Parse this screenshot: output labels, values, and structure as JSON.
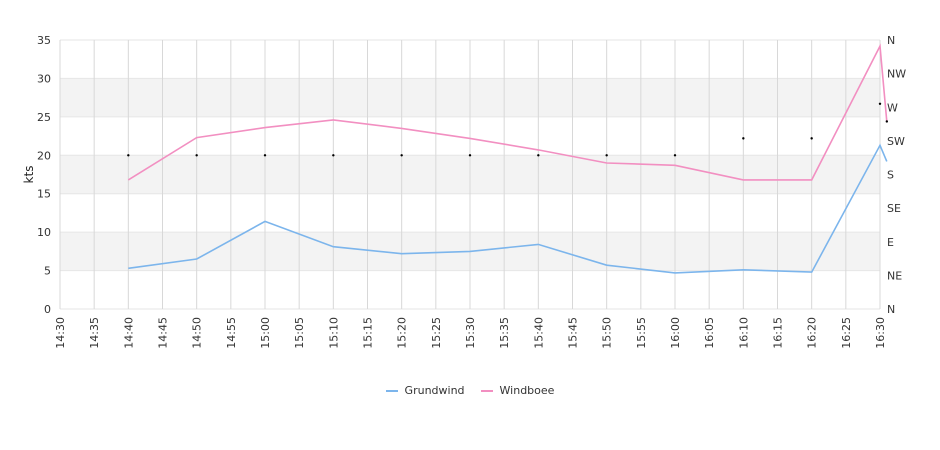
{
  "chart_data": {
    "type": "line",
    "ylabel": "kts",
    "x": [
      "14:40",
      "14:50",
      "15:00",
      "15:10",
      "15:20",
      "15:30",
      "15:40",
      "15:50",
      "16:00",
      "16:10",
      "16:20",
      "16:30",
      "16:31"
    ],
    "x_ticks": [
      "14:30",
      "14:35",
      "14:40",
      "14:45",
      "14:50",
      "14:55",
      "15:00",
      "15:05",
      "15:10",
      "15:15",
      "15:20",
      "15:25",
      "15:30",
      "15:35",
      "15:40",
      "15:45",
      "15:50",
      "15:55",
      "16:00",
      "16:05",
      "16:10",
      "16:15",
      "16:20",
      "16:25",
      "16:30"
    ],
    "ylim": [
      0,
      35
    ],
    "y_ticks": [
      "0",
      "5",
      "10",
      "15",
      "20",
      "25",
      "30",
      "35"
    ],
    "y2_ticks": [
      "N",
      "NE",
      "E",
      "SE",
      "S",
      "SW",
      "W",
      "NW",
      "N"
    ],
    "series": [
      {
        "name": "Grundwind",
        "color": "#7cb5ec",
        "values": [
          5.3,
          6.5,
          11.4,
          8.1,
          7.2,
          7.5,
          8.4,
          5.7,
          4.7,
          5.1,
          4.8,
          21.3,
          19.2
        ]
      },
      {
        "name": "Windboee",
        "color": "#f28fc1",
        "values": [
          16.8,
          22.3,
          23.6,
          24.6,
          23.5,
          22.2,
          20.7,
          19.0,
          18.7,
          16.8,
          16.8,
          34.2,
          24.4
        ]
      }
    ],
    "direction_markers": {
      "x": [
        "14:40",
        "14:50",
        "15:00",
        "15:10",
        "15:20",
        "15:30",
        "15:40",
        "15:50",
        "16:00",
        "16:10",
        "16:20",
        "16:30",
        "16:31"
      ],
      "values": [
        20,
        20,
        20,
        20,
        20,
        20,
        20,
        20,
        20,
        22.2,
        22.2,
        26.7,
        24.4
      ]
    },
    "grid": true,
    "legend_position": "bottom-center"
  }
}
